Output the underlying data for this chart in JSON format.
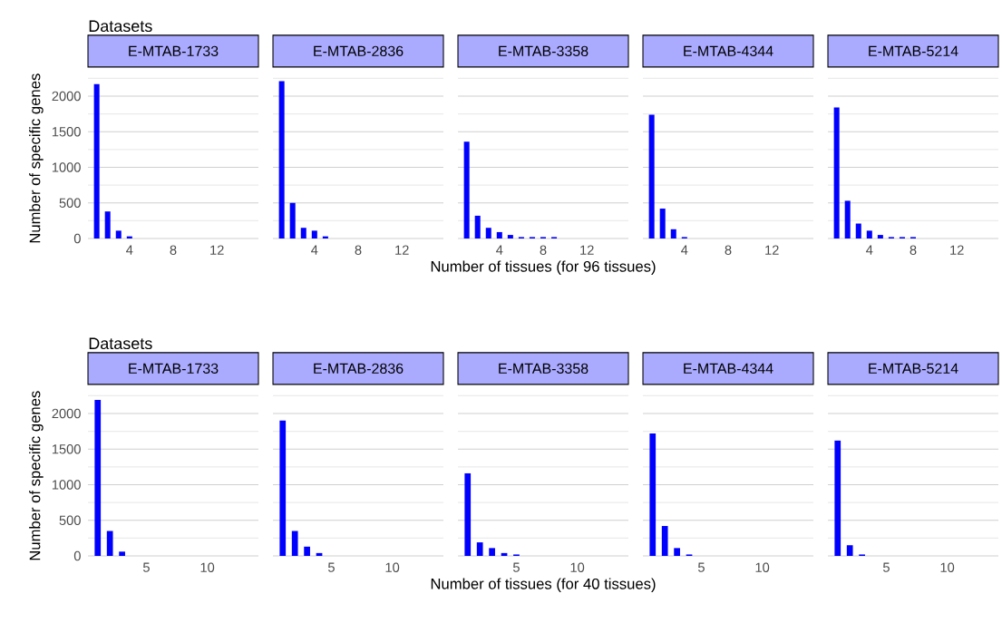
{
  "chart_data": [
    {
      "type": "bar",
      "title": "E-MTAB-1733",
      "annotations": [
        "Datasets"
      ],
      "ylabel": "Number of specific genes",
      "x": [
        1,
        2,
        3,
        4
      ],
      "values": [
        2170,
        380,
        110,
        30
      ],
      "color": "#0000ff",
      "xlim": [
        0.2,
        15.8
      ],
      "ylim": [
        0,
        2250
      ],
      "xticks": [
        4,
        8,
        12
      ],
      "yticks": [
        0,
        {
          "value": 250,
          "label": null
        },
        500,
        {
          "value": 750,
          "label": null
        },
        1000,
        {
          "value": 1250,
          "label": null
        },
        1500,
        {
          "value": 1750,
          "label": null
        },
        2000,
        {
          "value": 2250,
          "label": null
        }
      ],
      "grid": "y"
    },
    {
      "type": "bar",
      "title": "E-MTAB-2836",
      "x": [
        1,
        2,
        3,
        4,
        5
      ],
      "values": [
        2210,
        500,
        150,
        110,
        30
      ],
      "color": "#0000ff",
      "xlim": [
        0.2,
        15.8
      ],
      "ylim": [
        0,
        2250
      ],
      "xticks": [
        4,
        8,
        12
      ],
      "yticks": [
        0,
        {
          "value": 250,
          "label": null
        },
        500,
        {
          "value": 750,
          "label": null
        },
        1000,
        {
          "value": 1250,
          "label": null
        },
        1500,
        {
          "value": 1750,
          "label": null
        },
        2000,
        {
          "value": 2250,
          "label": null
        }
      ],
      "grid": "y",
      "tick_labels": "x"
    },
    {
      "type": "bar",
      "title": "E-MTAB-3358",
      "xlabel": "Number of tissues (for 96 tissues)",
      "x": [
        1,
        2,
        3,
        4,
        5,
        6,
        7,
        8,
        9
      ],
      "values": [
        1360,
        320,
        150,
        90,
        50,
        20,
        20,
        20,
        20
      ],
      "color": "#0000ff",
      "xlim": [
        0.2,
        15.8
      ],
      "ylim": [
        0,
        2250
      ],
      "xticks": [
        4,
        8,
        12
      ],
      "yticks": [
        0,
        {
          "value": 250,
          "label": null
        },
        500,
        {
          "value": 750,
          "label": null
        },
        1000,
        {
          "value": 1250,
          "label": null
        },
        1500,
        {
          "value": 1750,
          "label": null
        },
        2000,
        {
          "value": 2250,
          "label": null
        }
      ],
      "grid": "y",
      "tick_labels": "x"
    },
    {
      "type": "bar",
      "title": "E-MTAB-4344",
      "x": [
        1,
        2,
        3,
        4
      ],
      "values": [
        1740,
        420,
        130,
        20
      ],
      "color": "#0000ff",
      "xlim": [
        0.2,
        15.8
      ],
      "ylim": [
        0,
        2250
      ],
      "xticks": [
        4,
        8,
        12
      ],
      "yticks": [
        0,
        {
          "value": 250,
          "label": null
        },
        500,
        {
          "value": 750,
          "label": null
        },
        1000,
        {
          "value": 1250,
          "label": null
        },
        1500,
        {
          "value": 1750,
          "label": null
        },
        2000,
        {
          "value": 2250,
          "label": null
        }
      ],
      "grid": "y",
      "tick_labels": "x"
    },
    {
      "type": "bar",
      "title": "E-MTAB-5214",
      "x": [
        1,
        2,
        3,
        4,
        5,
        6,
        7,
        8
      ],
      "values": [
        1840,
        530,
        210,
        110,
        50,
        20,
        20,
        20
      ],
      "color": "#0000ff",
      "xlim": [
        0.2,
        15.8
      ],
      "ylim": [
        0,
        2250
      ],
      "xticks": [
        4,
        8,
        12
      ],
      "yticks": [
        0,
        {
          "value": 250,
          "label": null
        },
        500,
        {
          "value": 750,
          "label": null
        },
        1000,
        {
          "value": 1250,
          "label": null
        },
        1500,
        {
          "value": 1750,
          "label": null
        },
        2000,
        {
          "value": 2250,
          "label": null
        }
      ],
      "grid": "y",
      "tick_labels": "x"
    },
    {
      "type": "bar",
      "title": "E-MTAB-1733",
      "annotations": [
        "Datasets"
      ],
      "ylabel": "Number of specific genes",
      "x": [
        1,
        2,
        3
      ],
      "values": [
        2190,
        350,
        60
      ],
      "color": "#0000ff",
      "xlim": [
        0.2,
        14.2
      ],
      "ylim": [
        0,
        2250
      ],
      "xticks": [
        5,
        10
      ],
      "yticks": [
        0,
        {
          "value": 250,
          "label": null
        },
        500,
        {
          "value": 750,
          "label": null
        },
        1000,
        {
          "value": 1250,
          "label": null
        },
        1500,
        {
          "value": 1750,
          "label": null
        },
        2000,
        {
          "value": 2250,
          "label": null
        }
      ],
      "grid": "y"
    },
    {
      "type": "bar",
      "title": "E-MTAB-2836",
      "x": [
        1,
        2,
        3,
        4
      ],
      "values": [
        1900,
        350,
        130,
        40
      ],
      "color": "#0000ff",
      "xlim": [
        0.2,
        14.2
      ],
      "ylim": [
        0,
        2250
      ],
      "xticks": [
        5,
        10
      ],
      "yticks": [
        0,
        {
          "value": 250,
          "label": null
        },
        500,
        {
          "value": 750,
          "label": null
        },
        1000,
        {
          "value": 1250,
          "label": null
        },
        1500,
        {
          "value": 1750,
          "label": null
        },
        2000,
        {
          "value": 2250,
          "label": null
        }
      ],
      "grid": "y",
      "tick_labels": "x"
    },
    {
      "type": "bar",
      "title": "E-MTAB-3358",
      "xlabel": "Number of tissues (for 40 tissues)",
      "x": [
        1,
        2,
        3,
        4,
        5
      ],
      "values": [
        1160,
        190,
        110,
        40,
        20
      ],
      "color": "#0000ff",
      "xlim": [
        0.2,
        14.2
      ],
      "ylim": [
        0,
        2250
      ],
      "xticks": [
        5,
        10
      ],
      "yticks": [
        0,
        {
          "value": 250,
          "label": null
        },
        500,
        {
          "value": 750,
          "label": null
        },
        1000,
        {
          "value": 1250,
          "label": null
        },
        1500,
        {
          "value": 1750,
          "label": null
        },
        2000,
        {
          "value": 2250,
          "label": null
        }
      ],
      "grid": "y",
      "tick_labels": "x"
    },
    {
      "type": "bar",
      "title": "E-MTAB-4344",
      "x": [
        1,
        2,
        3,
        4
      ],
      "values": [
        1720,
        420,
        110,
        20
      ],
      "color": "#0000ff",
      "xlim": [
        0.2,
        14.2
      ],
      "ylim": [
        0,
        2250
      ],
      "xticks": [
        5,
        10
      ],
      "yticks": [
        0,
        {
          "value": 250,
          "label": null
        },
        500,
        {
          "value": 750,
          "label": null
        },
        1000,
        {
          "value": 1250,
          "label": null
        },
        1500,
        {
          "value": 1750,
          "label": null
        },
        2000,
        {
          "value": 2250,
          "label": null
        }
      ],
      "grid": "y",
      "tick_labels": "x"
    },
    {
      "type": "bar",
      "title": "E-MTAB-5214",
      "x": [
        1,
        2,
        3
      ],
      "values": [
        1620,
        150,
        20
      ],
      "color": "#0000ff",
      "xlim": [
        0.2,
        14.2
      ],
      "ylim": [
        0,
        2250
      ],
      "xticks": [
        5,
        10
      ],
      "yticks": [
        0,
        {
          "value": 250,
          "label": null
        },
        500,
        {
          "value": 750,
          "label": null
        },
        1000,
        {
          "value": 1250,
          "label": null
        },
        1500,
        {
          "value": 1750,
          "label": null
        },
        2000,
        {
          "value": 2250,
          "label": null
        }
      ],
      "grid": "y",
      "tick_labels": "x"
    }
  ]
}
